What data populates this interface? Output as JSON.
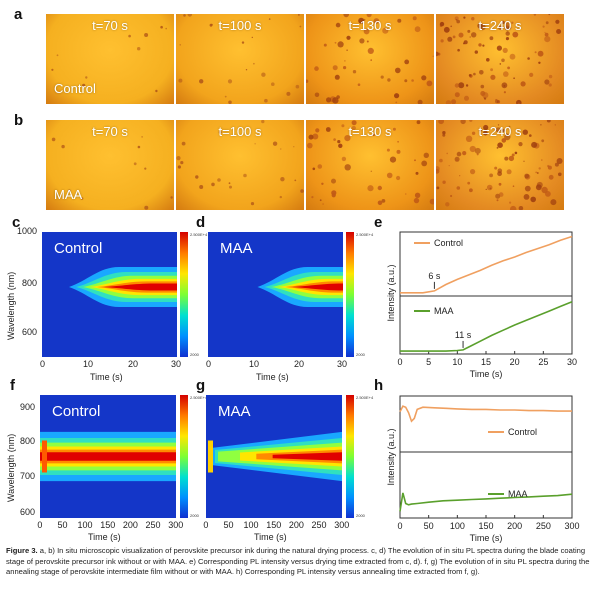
{
  "panel_letters": {
    "a": "a",
    "b": "b",
    "c": "c",
    "d": "d",
    "e": "e",
    "f": "f",
    "g": "g",
    "h": "h"
  },
  "micrographs": {
    "row_a": {
      "group": "Control",
      "times": [
        "t=70 s",
        "t=100 s",
        "t=130 s",
        "t=240 s"
      ]
    },
    "row_b": {
      "group": "MAA",
      "times": [
        "t=70 s",
        "t=100 s",
        "t=130 s",
        "t=240 s"
      ]
    }
  },
  "colors": {
    "control_line": "#f0a060",
    "maa_line": "#5aa02c",
    "tile_base": "#f2a018",
    "heat_bg": "#1436c8"
  },
  "chart_data": [
    {
      "panel": "c",
      "type": "heatmap",
      "label": "Control",
      "xlabel": "Time (s)",
      "ylabel": "Wavelength (nm)",
      "xlim": [
        0,
        30
      ],
      "ylim": [
        500,
        1000
      ],
      "xticks": [
        "0",
        "10",
        "20",
        "30"
      ],
      "yticks": [
        "600",
        "800",
        "1000"
      ],
      "colorbar_max": "2.500E+4",
      "colorbar_min": "2000",
      "emission_center_nm": 780,
      "onset_s": 6
    },
    {
      "panel": "d",
      "type": "heatmap",
      "label": "MAA",
      "xlabel": "Time (s)",
      "xlim": [
        0,
        30
      ],
      "ylim": [
        500,
        1000
      ],
      "xticks": [
        "0",
        "10",
        "20",
        "30"
      ],
      "colorbar_max": "2.500E+4",
      "colorbar_min": "2000",
      "emission_center_nm": 780,
      "onset_s": 11
    },
    {
      "panel": "e",
      "type": "line",
      "xlabel": "Time (s)",
      "ylabel": "Intensity (a.u.)",
      "xlim": [
        0,
        30
      ],
      "xticks": [
        "0",
        "5",
        "10",
        "15",
        "20",
        "25",
        "30"
      ],
      "series": [
        {
          "name": "Control",
          "annotation": "6 s",
          "x": [
            0,
            2,
            4,
            6,
            8,
            10,
            12,
            14,
            16,
            18,
            20,
            22,
            24,
            26,
            28,
            30
          ],
          "y": [
            0.05,
            0.05,
            0.05,
            0.08,
            0.18,
            0.26,
            0.33,
            0.4,
            0.48,
            0.55,
            0.61,
            0.68,
            0.74,
            0.8,
            0.87,
            0.93
          ]
        },
        {
          "name": "MAA",
          "annotation": "11 s",
          "x": [
            0,
            2,
            4,
            6,
            8,
            10,
            11,
            12,
            14,
            16,
            18,
            20,
            22,
            24,
            26,
            28,
            30
          ],
          "y": [
            0.05,
            0.05,
            0.05,
            0.05,
            0.05,
            0.06,
            0.07,
            0.12,
            0.22,
            0.32,
            0.41,
            0.5,
            0.58,
            0.66,
            0.74,
            0.82,
            0.9
          ]
        }
      ]
    },
    {
      "panel": "f",
      "type": "heatmap",
      "label": "Control",
      "xlabel": "Time (s)",
      "ylabel": "Wavelength (nm)",
      "xlim": [
        0,
        300
      ],
      "ylim": [
        600,
        950
      ],
      "xticks": [
        "0",
        "50",
        "100",
        "150",
        "200",
        "250",
        "300"
      ],
      "yticks": [
        "600",
        "700",
        "800",
        "900"
      ],
      "colorbar_max": "2.500E+4",
      "colorbar_min": "2000",
      "emission_center_nm": 775
    },
    {
      "panel": "g",
      "type": "heatmap",
      "label": "MAA",
      "xlabel": "Time (s)",
      "xlim": [
        0,
        300
      ],
      "ylim": [
        600,
        950
      ],
      "xticks": [
        "0",
        "50",
        "100",
        "150",
        "200",
        "250",
        "300"
      ],
      "colorbar_max": "2.500E+4",
      "colorbar_min": "2000",
      "emission_center_nm": 775
    },
    {
      "panel": "h",
      "type": "line",
      "xlabel": "Time (s)",
      "ylabel": "Intensity (a.u.)",
      "xlim": [
        0,
        300
      ],
      "xticks": [
        "0",
        "50",
        "100",
        "150",
        "200",
        "250",
        "300"
      ],
      "series": [
        {
          "name": "Control",
          "x": [
            0,
            5,
            10,
            15,
            20,
            25,
            30,
            40,
            60,
            80,
            100,
            125,
            150,
            175,
            200,
            225,
            250,
            275,
            300
          ],
          "y": [
            0.72,
            0.82,
            0.8,
            0.7,
            0.55,
            0.6,
            0.76,
            0.8,
            0.79,
            0.78,
            0.77,
            0.76,
            0.76,
            0.75,
            0.75,
            0.74,
            0.74,
            0.73,
            0.73
          ]
        },
        {
          "name": "MAA",
          "x": [
            0,
            5,
            10,
            15,
            20,
            30,
            50,
            75,
            100,
            125,
            150,
            175,
            200,
            225,
            250,
            275,
            300
          ],
          "y": [
            0.1,
            0.38,
            0.22,
            0.2,
            0.21,
            0.22,
            0.24,
            0.26,
            0.27,
            0.28,
            0.29,
            0.3,
            0.31,
            0.32,
            0.33,
            0.34,
            0.36
          ]
        }
      ]
    }
  ],
  "caption": {
    "label": "Figure 3.",
    "text": " a, b) In situ microscopic visualization of perovskite precursor ink during the natural drying process. c, d) The evolution of in situ PL spectra during the blade coating stage of perovskite precursor ink without or with MAA. e) Corresponding PL intensity versus drying time extracted from c, d). f, g) The evolution of in situ PL spectra during the annealing stage of perovskite intermediate film without or with MAA. h) Corresponding PL intensity versus annealing time extracted from f, g)."
  }
}
